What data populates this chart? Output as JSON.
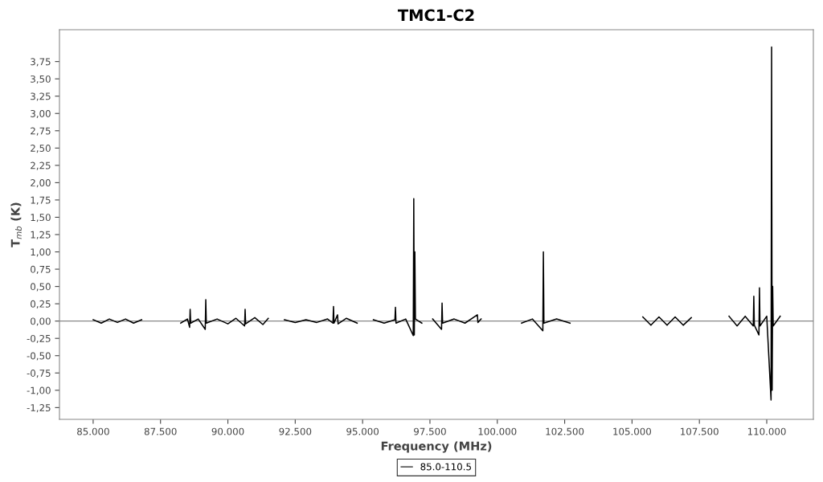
{
  "chart_data": {
    "type": "line",
    "title": "TMC1-C2",
    "xlabel": "Frequency (MHz)",
    "ylabel": "T$_{mb}$ (K)",
    "x": [
      85000,
      85300,
      85600,
      85900,
      86200,
      86500,
      86800,
      87500,
      88250,
      88500,
      88580,
      88600,
      88620,
      88900,
      89160,
      89180,
      89200,
      89600,
      90000,
      90300,
      90620,
      90640,
      90660,
      91000,
      91300,
      91500,
      91800,
      92100,
      92500,
      92900,
      93300,
      93700,
      93900,
      93920,
      93940,
      94070,
      94090,
      94400,
      94800,
      95100,
      95400,
      95800,
      96200,
      96220,
      96240,
      96600,
      96880,
      96900,
      96920,
      96940,
      96960,
      97200,
      97400,
      97600,
      97930,
      97950,
      97970,
      98400,
      98800,
      99260,
      99280,
      99400,
      100000,
      100900,
      101300,
      101690,
      101710,
      101730,
      102200,
      102700,
      104000,
      105400,
      105700,
      106000,
      106300,
      106600,
      106900,
      107200,
      108000,
      108600,
      108900,
      109200,
      109500,
      109520,
      109540,
      109710,
      109730,
      109750,
      110000,
      110160,
      110180,
      110200,
      110220,
      110240,
      110500
    ],
    "series": [
      {
        "name": "85.0-110.5",
        "color": "#000000",
        "values": [
          0.02,
          -0.03,
          0.03,
          -0.02,
          0.03,
          -0.03,
          0.02,
          null,
          -0.03,
          0.03,
          -0.09,
          0.17,
          -0.03,
          0.03,
          -0.12,
          0.31,
          -0.03,
          0.03,
          -0.04,
          0.04,
          -0.07,
          0.17,
          -0.04,
          0.05,
          -0.05,
          0.04,
          null,
          0.02,
          -0.02,
          0.02,
          -0.02,
          0.03,
          -0.03,
          0.21,
          -0.03,
          0.09,
          -0.04,
          0.04,
          -0.03,
          null,
          0.02,
          -0.03,
          0.02,
          0.2,
          -0.03,
          0.03,
          -0.21,
          1.77,
          -0.2,
          1.0,
          0.03,
          -0.03,
          null,
          0.03,
          -0.12,
          0.26,
          -0.03,
          0.03,
          -0.03,
          0.09,
          -0.02,
          0.03,
          null,
          -0.03,
          0.03,
          -0.14,
          1.0,
          -0.03,
          0.03,
          -0.03,
          null,
          0.06,
          -0.06,
          0.06,
          -0.06,
          0.06,
          -0.06,
          0.05,
          null,
          0.07,
          -0.07,
          0.07,
          -0.07,
          0.36,
          -0.06,
          -0.2,
          0.48,
          -0.07,
          0.07,
          -1.14,
          3.96,
          -1.0,
          0.5,
          -0.07,
          0.07
        ]
      }
    ],
    "xlim": [
      83750,
      111730
    ],
    "ylim": [
      -1.42,
      4.21
    ],
    "xticks": [
      {
        "value": 85000,
        "label": "85.000"
      },
      {
        "value": 87500,
        "label": "87.500"
      },
      {
        "value": 90000,
        "label": "90.000"
      },
      {
        "value": 92500,
        "label": "92.500"
      },
      {
        "value": 95000,
        "label": "95.000"
      },
      {
        "value": 97500,
        "label": "97.500"
      },
      {
        "value": 100000,
        "label": "100.000"
      },
      {
        "value": 102500,
        "label": "102.500"
      },
      {
        "value": 105000,
        "label": "105.000"
      },
      {
        "value": 107500,
        "label": "107.500"
      },
      {
        "value": 110000,
        "label": "110.000"
      }
    ],
    "yticks": [
      {
        "value": -1.25,
        "label": "-1,25"
      },
      {
        "value": -1.0,
        "label": "-1,00"
      },
      {
        "value": -0.75,
        "label": "-0,75"
      },
      {
        "value": -0.5,
        "label": "-0,50"
      },
      {
        "value": -0.25,
        "label": "-0,25"
      },
      {
        "value": 0,
        "label": "0,00"
      },
      {
        "value": 0.25,
        "label": "0,25"
      },
      {
        "value": 0.5,
        "label": "0,50"
      },
      {
        "value": 0.75,
        "label": "0,75"
      },
      {
        "value": 1.0,
        "label": "1,00"
      },
      {
        "value": 1.25,
        "label": "1,25"
      },
      {
        "value": 1.5,
        "label": "1,50"
      },
      {
        "value": 1.75,
        "label": "1,75"
      },
      {
        "value": 2.0,
        "label": "2,00"
      },
      {
        "value": 2.25,
        "label": "2,25"
      },
      {
        "value": 2.5,
        "label": "2,50"
      },
      {
        "value": 2.75,
        "label": "2,75"
      },
      {
        "value": 3.0,
        "label": "3,00"
      },
      {
        "value": 3.25,
        "label": "3,25"
      },
      {
        "value": 3.5,
        "label": "3,50"
      },
      {
        "value": 3.75,
        "label": "3,75"
      }
    ],
    "ref_lines": [
      {
        "axis": "y",
        "value": 0,
        "color": "#888888"
      }
    ],
    "grid": false,
    "legend": "bottom",
    "marker": "none",
    "line_style": "solid"
  }
}
